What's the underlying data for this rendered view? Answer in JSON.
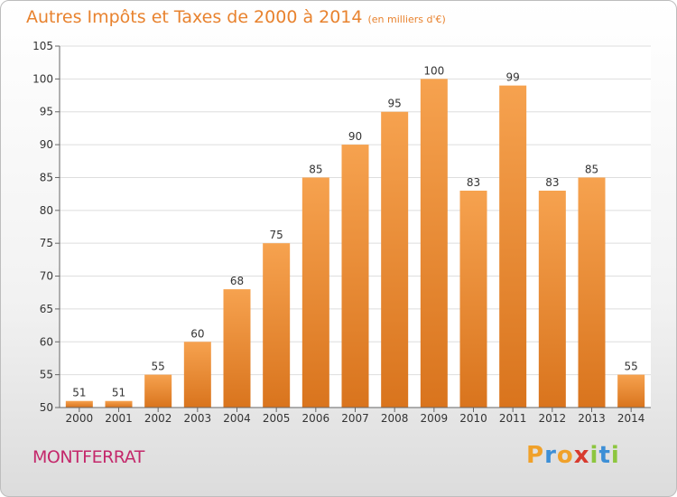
{
  "title": "Autres Impôts et Taxes de 2000 à 2014",
  "subtitle": "(en milliers d'€)",
  "commune": "MONTFERRAT",
  "brand": "Proxiti",
  "colors": {
    "title": "#e8822e",
    "commune": "#c4286b",
    "bar_top": "#f6a24f",
    "bar_bottom": "#d9741d"
  },
  "chart_data": {
    "type": "bar",
    "title": "Autres Impôts et Taxes de 2000 à 2014",
    "xlabel": "",
    "ylabel": "",
    "categories": [
      "2000",
      "2001",
      "2002",
      "2003",
      "2004",
      "2005",
      "2006",
      "2007",
      "2008",
      "2009",
      "2010",
      "2011",
      "2012",
      "2013",
      "2014"
    ],
    "values": [
      51,
      51,
      55,
      60,
      68,
      75,
      85,
      90,
      95,
      100,
      83,
      99,
      83,
      85,
      55
    ],
    "ylim": [
      50,
      105
    ],
    "yticks": [
      50,
      55,
      60,
      65,
      70,
      75,
      80,
      85,
      90,
      95,
      100,
      105
    ],
    "grid": true,
    "legend": "none"
  }
}
